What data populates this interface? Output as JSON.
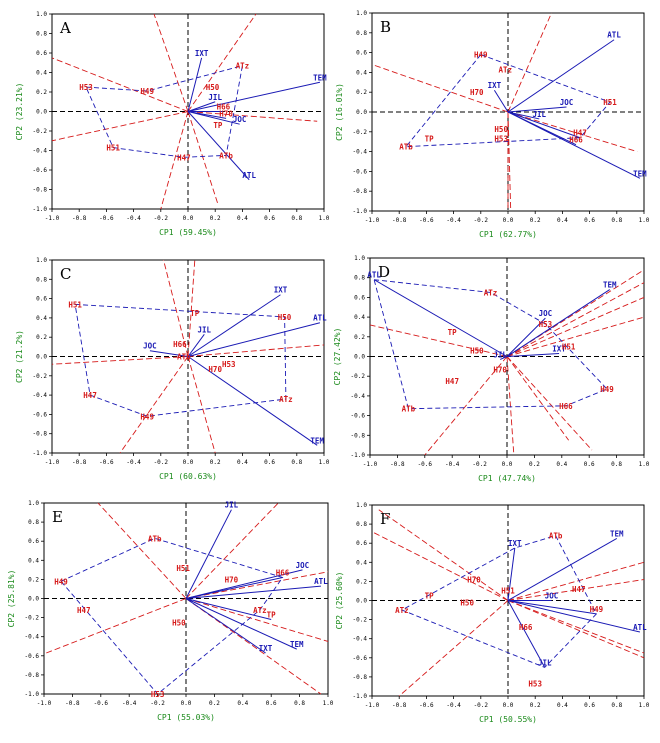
{
  "chart_data": [
    {
      "type": "biplot",
      "panel_label": "A",
      "xlabel": "CP1 (59.45%)",
      "ylabel": "CP2 (23.21%)",
      "xlim": [
        -1.0,
        1.0
      ],
      "ylim": [
        -1.0,
        1.0
      ],
      "xticks": [
        "-1.0",
        "-0.8",
        "-0.6",
        "-0.4",
        "-0.2",
        "0.0",
        "0.2",
        "0.4",
        "0.6",
        "0.8",
        "1.0"
      ],
      "yticks": [
        "1.0",
        "0.8",
        "0.6",
        "0.4",
        "0.2",
        "0.0",
        "-0.2",
        "-0.4",
        "-0.6",
        "-0.8",
        "-1.0"
      ],
      "vectors": [
        {
          "name": "TEM",
          "x": 0.97,
          "y": 0.3
        },
        {
          "name": "ATL",
          "x": 0.45,
          "y": -0.7
        },
        {
          "name": "JIL",
          "x": 0.2,
          "y": 0.1
        },
        {
          "name": "IXT",
          "x": 0.1,
          "y": 0.55
        },
        {
          "name": "JOC",
          "x": 0.38,
          "y": -0.13
        },
        {
          "name": "H70",
          "x": 0.28,
          "y": -0.07
        },
        {
          "name": "H66",
          "x": 0.26,
          "y": 0.0
        }
      ],
      "points": [
        {
          "name": "H53",
          "x": -0.75,
          "y": 0.25
        },
        {
          "name": "H49",
          "x": -0.3,
          "y": 0.21
        },
        {
          "name": "H50",
          "x": 0.18,
          "y": 0.25
        },
        {
          "name": "H51",
          "x": -0.55,
          "y": -0.37
        },
        {
          "name": "H47",
          "x": -0.03,
          "y": -0.47
        },
        {
          "name": "ATz",
          "x": 0.4,
          "y": 0.47
        },
        {
          "name": "ATb",
          "x": 0.28,
          "y": -0.45
        },
        {
          "name": "TP",
          "x": 0.22,
          "y": -0.14
        }
      ],
      "hull": [
        "H53",
        "H49",
        "ATz",
        "ATb",
        "H47",
        "H51"
      ],
      "rays": [
        [
          -1.0,
          -0.3
        ],
        [
          0.22,
          -0.95
        ],
        [
          -0.2,
          -1.0
        ],
        [
          -0.25,
          1.0
        ],
        [
          0.5,
          1.0
        ],
        [
          0.95,
          -0.1
        ],
        [
          -1.0,
          0.55
        ]
      ]
    },
    {
      "type": "biplot",
      "panel_label": "B",
      "xlabel": "CP1 (62.77%)",
      "ylabel": "CP2 (16.01%)",
      "xlim": [
        -1.0,
        1.0
      ],
      "ylim": [
        -1.0,
        1.0
      ],
      "xticks": [
        "-1.0",
        "-0.8",
        "-0.6",
        "-0.4",
        "-0.2",
        "0.0",
        "0.2",
        "0.4",
        "0.6",
        "0.8",
        "1.0"
      ],
      "yticks": [
        "1.0",
        "0.8",
        "0.6",
        "0.4",
        "0.2",
        "0.0",
        "-0.2",
        "-0.4",
        "-0.6",
        "-0.8",
        "-1.0"
      ],
      "vectors": [
        {
          "name": "ATL",
          "x": 0.78,
          "y": 0.73
        },
        {
          "name": "TEM",
          "x": 0.97,
          "y": -0.67
        },
        {
          "name": "JOC",
          "x": 0.43,
          "y": 0.05
        },
        {
          "name": "JIL",
          "x": 0.23,
          "y": -0.07
        },
        {
          "name": "IXT",
          "x": -0.1,
          "y": 0.22
        },
        {
          "name": "H66",
          "x": 0.5,
          "y": -0.33
        },
        {
          "name": "H47",
          "x": 0.53,
          "y": -0.26
        }
      ],
      "points": [
        {
          "name": "H49",
          "x": -0.2,
          "y": 0.58
        },
        {
          "name": "ATz",
          "x": -0.02,
          "y": 0.43
        },
        {
          "name": "H70",
          "x": -0.23,
          "y": 0.2
        },
        {
          "name": "H51",
          "x": 0.75,
          "y": 0.1
        },
        {
          "name": "H50",
          "x": -0.05,
          "y": -0.17
        },
        {
          "name": "H53",
          "x": -0.05,
          "y": -0.27
        },
        {
          "name": "TP",
          "x": -0.58,
          "y": -0.27
        },
        {
          "name": "ATb",
          "x": -0.75,
          "y": -0.35
        }
      ],
      "hull": [
        "H49",
        "H51",
        "H47",
        "ATb"
      ],
      "rays": [
        [
          -1.0,
          0.48
        ],
        [
          0.32,
          1.0
        ],
        [
          0.95,
          -0.4
        ],
        [
          0.02,
          -1.0
        ],
        [
          0.0,
          -1.0
        ]
      ]
    },
    {
      "type": "biplot",
      "panel_label": "C",
      "xlabel": "CP1 (60.63%)",
      "ylabel": "CP2 (21.2%)",
      "xlim": [
        -1.0,
        1.0
      ],
      "ylim": [
        -1.0,
        1.0
      ],
      "xticks": [
        "-1.0",
        "-0.8",
        "-0.6",
        "-0.4",
        "-0.2",
        "0.0",
        "0.2",
        "0.4",
        "0.6",
        "0.8",
        "1.0"
      ],
      "yticks": [
        "1.0",
        "0.8",
        "0.6",
        "0.4",
        "0.2",
        "0.0",
        "-0.2",
        "-0.4",
        "-0.6",
        "-0.8",
        "-1.0"
      ],
      "vectors": [
        {
          "name": "IXT",
          "x": 0.68,
          "y": 0.64
        },
        {
          "name": "ATL",
          "x": 0.97,
          "y": 0.35
        },
        {
          "name": "TEM",
          "x": 0.95,
          "y": -0.92
        },
        {
          "name": "JIL",
          "x": 0.12,
          "y": 0.23
        },
        {
          "name": "JOC",
          "x": -0.28,
          "y": 0.06
        }
      ],
      "points": [
        {
          "name": "H51",
          "x": -0.83,
          "y": 0.54
        },
        {
          "name": "TP",
          "x": 0.05,
          "y": 0.45
        },
        {
          "name": "H50",
          "x": 0.71,
          "y": 0.41
        },
        {
          "name": "H66",
          "x": -0.06,
          "y": 0.13
        },
        {
          "name": "ATb",
          "x": -0.03,
          "y": 0.0
        },
        {
          "name": "H70",
          "x": 0.2,
          "y": -0.13
        },
        {
          "name": "H53",
          "x": 0.3,
          "y": -0.08
        },
        {
          "name": "ATz",
          "x": 0.72,
          "y": -0.44
        },
        {
          "name": "H47",
          "x": -0.72,
          "y": -0.4
        },
        {
          "name": "H49",
          "x": -0.3,
          "y": -0.62
        }
      ],
      "hull": [
        "H51",
        "H50",
        "ATz",
        "H49",
        "H47"
      ],
      "rays": [
        [
          -1.0,
          -0.08
        ],
        [
          1.0,
          0.12
        ],
        [
          -0.5,
          -1.0
        ],
        [
          0.2,
          -1.0
        ],
        [
          -0.18,
          1.0
        ],
        [
          0.05,
          1.0
        ]
      ]
    },
    {
      "type": "biplot",
      "panel_label": "D",
      "xlabel": "CP1 (47.74%)",
      "ylabel": "CP2 (27.42%)",
      "xlim": [
        -1.0,
        1.0
      ],
      "ylim": [
        -1.0,
        1.0
      ],
      "xticks": [
        "-1.0",
        "-0.8",
        "-0.6",
        "-0.4",
        "-0.2",
        "0.0",
        "0.2",
        "0.4",
        "0.6",
        "0.8",
        "1.0"
      ],
      "yticks": [
        "1.0",
        "0.8",
        "0.6",
        "0.4",
        "0.2",
        "0.0",
        "-0.2",
        "-0.4",
        "-0.6",
        "-0.8",
        "-1.0"
      ],
      "vectors": [
        {
          "name": "ATL",
          "x": -0.97,
          "y": 0.78
        },
        {
          "name": "TEM",
          "x": 0.75,
          "y": 0.68
        },
        {
          "name": "JOC",
          "x": 0.28,
          "y": 0.39
        },
        {
          "name": "IXT",
          "x": 0.38,
          "y": 0.03
        },
        {
          "name": "JIL",
          "x": -0.05,
          "y": -0.03
        }
      ],
      "points": [
        {
          "name": "ATz",
          "x": -0.12,
          "y": 0.65
        },
        {
          "name": "H53",
          "x": 0.28,
          "y": 0.33
        },
        {
          "name": "TP",
          "x": -0.4,
          "y": 0.25
        },
        {
          "name": "H50",
          "x": -0.22,
          "y": 0.06
        },
        {
          "name": "H70",
          "x": -0.05,
          "y": -0.13
        },
        {
          "name": "H51",
          "x": 0.45,
          "y": 0.1
        },
        {
          "name": "H47",
          "x": -0.4,
          "y": -0.25
        },
        {
          "name": "H49",
          "x": 0.73,
          "y": -0.33
        },
        {
          "name": "H66",
          "x": 0.43,
          "y": -0.5
        },
        {
          "name": "ATb",
          "x": -0.72,
          "y": -0.53
        }
      ],
      "hull": [
        "ATL",
        "ATz",
        "H53",
        "H49",
        "H66",
        "ATb"
      ],
      "rays": [
        [
          1.0,
          0.88
        ],
        [
          1.0,
          0.75
        ],
        [
          1.0,
          0.6
        ],
        [
          1.0,
          0.4
        ],
        [
          -0.6,
          -1.0
        ],
        [
          0.05,
          -1.0
        ],
        [
          -1.0,
          0.32
        ],
        [
          0.45,
          -0.85
        ],
        [
          0.62,
          -0.95
        ]
      ]
    },
    {
      "type": "biplot",
      "panel_label": "E",
      "xlabel": "CP1 (55.03%)",
      "ylabel": "CP2 (25.81%)",
      "xlim": [
        -1.0,
        1.0
      ],
      "ylim": [
        -1.0,
        1.0
      ],
      "xticks": [
        "-1.0",
        "-0.8",
        "-0.6",
        "-0.4",
        "-0.2",
        "0.0",
        "0.2",
        "0.4",
        "0.6",
        "0.8",
        "1.0"
      ],
      "yticks": [
        "1.0",
        "0.8",
        "0.6",
        "0.4",
        "0.2",
        "0.0",
        "-0.2",
        "-0.4",
        "-0.6",
        "-0.8",
        "-1.0"
      ],
      "vectors": [
        {
          "name": "JIL",
          "x": 0.32,
          "y": 0.93
        },
        {
          "name": "JOC",
          "x": 0.82,
          "y": 0.3
        },
        {
          "name": "ATL",
          "x": 0.95,
          "y": 0.13
        },
        {
          "name": "TEM",
          "x": 0.78,
          "y": -0.53
        },
        {
          "name": "IXT",
          "x": 0.56,
          "y": -0.57
        },
        {
          "name": "H66",
          "x": 0.68,
          "y": 0.22
        },
        {
          "name": "TP",
          "x": 0.6,
          "y": -0.22
        }
      ],
      "points": [
        {
          "name": "ATb",
          "x": -0.22,
          "y": 0.63
        },
        {
          "name": "H51",
          "x": -0.02,
          "y": 0.32
        },
        {
          "name": "H70",
          "x": 0.32,
          "y": 0.2
        },
        {
          "name": "H49",
          "x": -0.88,
          "y": 0.18
        },
        {
          "name": "H47",
          "x": -0.72,
          "y": -0.12
        },
        {
          "name": "H50",
          "x": -0.05,
          "y": -0.25
        },
        {
          "name": "ATz",
          "x": 0.52,
          "y": -0.12
        },
        {
          "name": "H53",
          "x": -0.2,
          "y": -1.0
        }
      ],
      "hull": [
        "H49",
        "ATb",
        "H66",
        "ATz",
        "H53"
      ],
      "rays": [
        [
          -0.62,
          1.0
        ],
        [
          -1.0,
          -0.58
        ],
        [
          0.95,
          -1.0
        ],
        [
          1.0,
          -0.45
        ],
        [
          0.65,
          1.0
        ],
        [
          1.0,
          0.28
        ]
      ]
    },
    {
      "type": "biplot",
      "panel_label": "F",
      "xlabel": "CP1 (50.55%)",
      "ylabel": "CP2 (25.60%)",
      "xlim": [
        -1.0,
        1.0
      ],
      "ylim": [
        -1.0,
        1.0
      ],
      "xticks": [
        "-1.0",
        "-0.8",
        "-0.6",
        "-0.4",
        "-0.2",
        "0.0",
        "0.2",
        "0.4",
        "0.6",
        "0.8",
        "1.0"
      ],
      "yticks": [
        "1.0",
        "0.8",
        "0.6",
        "0.4",
        "0.2",
        "0.0",
        "-0.2",
        "-0.4",
        "-0.6",
        "-0.8",
        "-1.0"
      ],
      "vectors": [
        {
          "name": "IXT",
          "x": 0.05,
          "y": 0.55
        },
        {
          "name": "TEM",
          "x": 0.8,
          "y": 0.65
        },
        {
          "name": "JOC",
          "x": 0.32,
          "y": 0.0
        },
        {
          "name": "ATL",
          "x": 0.97,
          "y": -0.33
        },
        {
          "name": "JIL",
          "x": 0.27,
          "y": -0.7
        },
        {
          "name": "H49",
          "x": 0.65,
          "y": -0.14
        },
        {
          "name": "H51",
          "x": 0.0,
          "y": 0.05
        }
      ],
      "points": [
        {
          "name": "ATb",
          "x": 0.35,
          "y": 0.68
        },
        {
          "name": "H70",
          "x": -0.25,
          "y": 0.22
        },
        {
          "name": "H47",
          "x": 0.52,
          "y": 0.12
        },
        {
          "name": "TP",
          "x": -0.58,
          "y": 0.05
        },
        {
          "name": "H50",
          "x": -0.3,
          "y": -0.02
        },
        {
          "name": "ATz",
          "x": -0.78,
          "y": -0.1
        },
        {
          "name": "H66",
          "x": 0.13,
          "y": -0.28
        },
        {
          "name": "H53",
          "x": 0.2,
          "y": -0.87
        }
      ],
      "hull": [
        "ATb",
        "H49",
        "JIL",
        "ATz",
        "IXT"
      ],
      "rays": [
        [
          -0.95,
          0.95
        ],
        [
          -0.8,
          -1.0
        ],
        [
          1.0,
          0.4
        ],
        [
          1.0,
          -0.6
        ],
        [
          -1.0,
          0.72
        ],
        [
          1.0,
          0.22
        ],
        [
          1.0,
          -0.55
        ]
      ]
    }
  ]
}
